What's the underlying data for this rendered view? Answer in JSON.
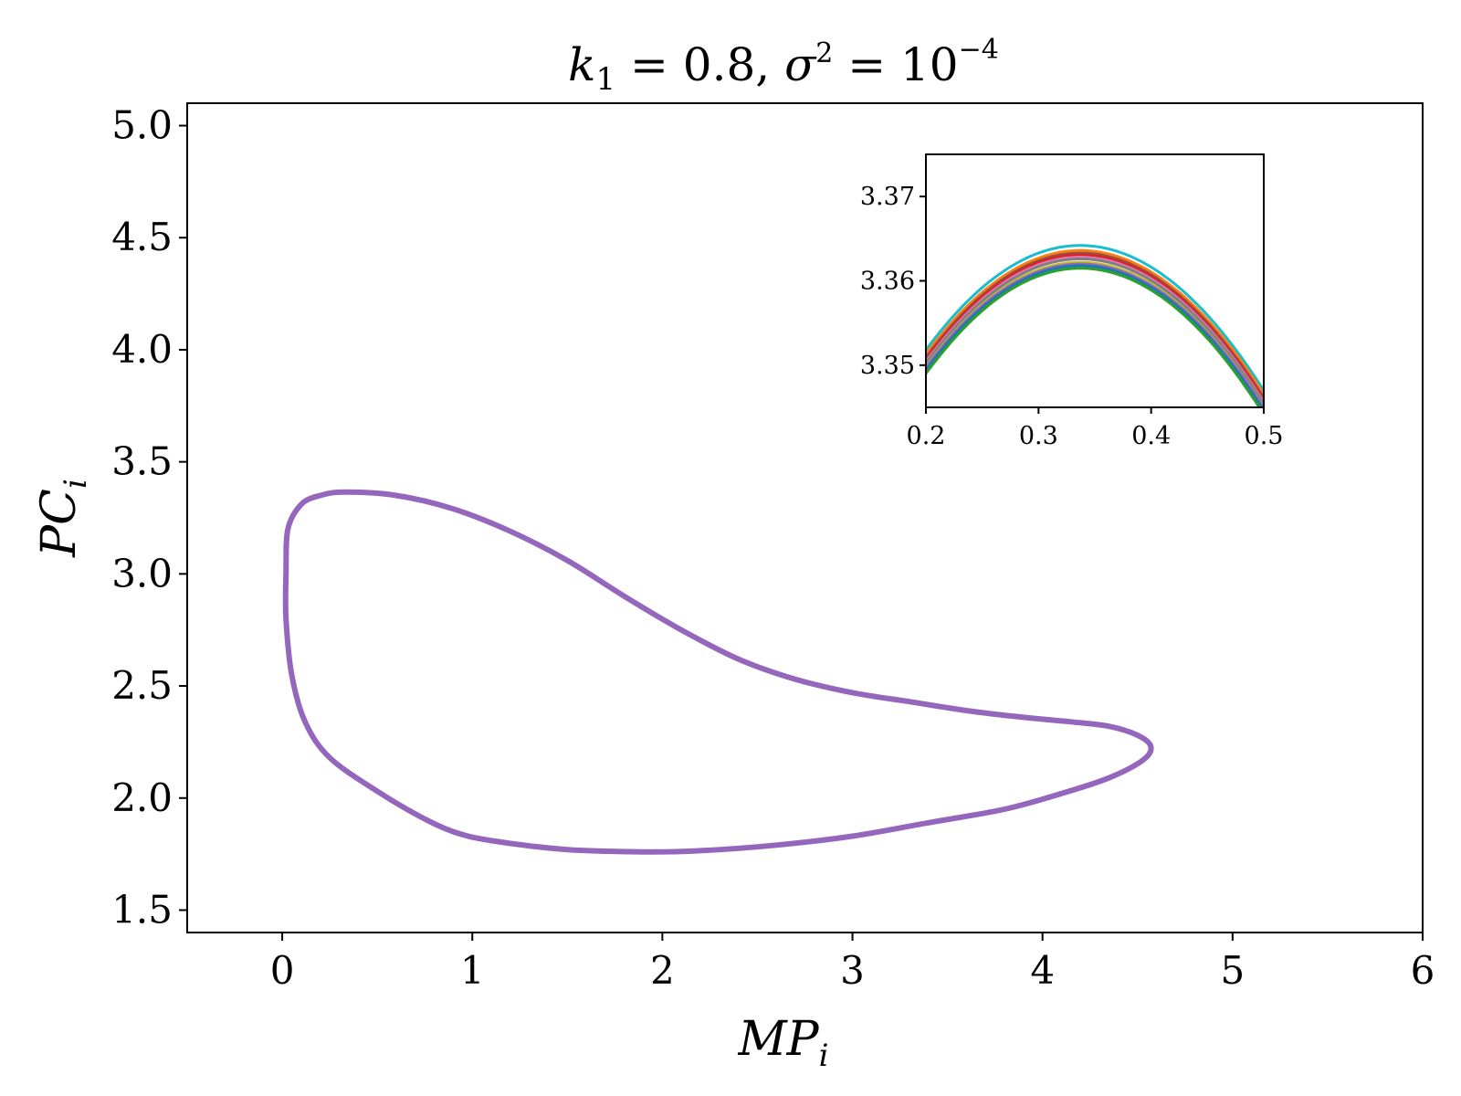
{
  "chart_data": [
    {
      "type": "line",
      "title": {
        "k": "k",
        "k_sub": "1",
        "k_eq": " = 0.8, ",
        "sigma": "σ",
        "sigma_sup": "2",
        "sigma_eq": " = 10",
        "exponent": "−4"
      },
      "xlabel": {
        "main": "MP",
        "sub": "i"
      },
      "ylabel": {
        "main": "PC",
        "sub": "i"
      },
      "xlim": [
        -0.5,
        6
      ],
      "ylim": [
        1.4,
        5.1
      ],
      "xticks": [
        0,
        1,
        2,
        3,
        4,
        5,
        6
      ],
      "xtick_labels": [
        "0",
        "1",
        "2",
        "3",
        "4",
        "5",
        "6"
      ],
      "yticks": [
        1.5,
        2.0,
        2.5,
        3.0,
        3.5,
        4.0,
        4.5,
        5.0
      ],
      "ytick_labels": [
        "1.5",
        "2.0",
        "2.5",
        "3.0",
        "3.5",
        "4.0",
        "4.5",
        "5.0"
      ],
      "grid": false,
      "series": [
        {
          "color": "#9467bd",
          "closed": true,
          "points": [
            [
              0.33,
              3.365
            ],
            [
              0.6,
              3.35
            ],
            [
              0.9,
              3.29
            ],
            [
              1.2,
              3.19
            ],
            [
              1.5,
              3.06
            ],
            [
              1.8,
              2.9
            ],
            [
              2.1,
              2.75
            ],
            [
              2.4,
              2.62
            ],
            [
              2.7,
              2.53
            ],
            [
              3.0,
              2.47
            ],
            [
              3.3,
              2.43
            ],
            [
              3.6,
              2.39
            ],
            [
              3.9,
              2.36
            ],
            [
              4.15,
              2.34
            ],
            [
              4.35,
              2.32
            ],
            [
              4.5,
              2.28
            ],
            [
              4.57,
              2.23
            ],
            [
              4.53,
              2.17
            ],
            [
              4.35,
              2.09
            ],
            [
              4.1,
              2.02
            ],
            [
              3.8,
              1.95
            ],
            [
              3.4,
              1.89
            ],
            [
              3.0,
              1.83
            ],
            [
              2.6,
              1.79
            ],
            [
              2.2,
              1.765
            ],
            [
              1.9,
              1.76
            ],
            [
              1.5,
              1.77
            ],
            [
              1.1,
              1.81
            ],
            [
              0.9,
              1.85
            ],
            [
              0.72,
              1.92
            ],
            [
              0.5,
              2.03
            ],
            [
              0.25,
              2.18
            ],
            [
              0.12,
              2.34
            ],
            [
              0.05,
              2.55
            ],
            [
              0.02,
              2.8
            ],
            [
              0.02,
              3.0
            ],
            [
              0.03,
              3.2
            ],
            [
              0.1,
              3.31
            ],
            [
              0.2,
              3.35
            ]
          ]
        }
      ]
    },
    {
      "type": "line",
      "role": "inset",
      "xlim": [
        0.2,
        0.5
      ],
      "ylim": [
        3.345,
        3.375
      ],
      "xticks": [
        0.2,
        0.3,
        0.4,
        0.5
      ],
      "xtick_labels": [
        "0.2",
        "0.3",
        "0.4",
        "0.5"
      ],
      "yticks": [
        3.35,
        3.36,
        3.37
      ],
      "ytick_labels": [
        "3.35",
        "3.36",
        "3.37"
      ],
      "grid": false,
      "series": [
        {
          "color": "#17becf",
          "x_peak": 0.337,
          "y_peak": 3.3642,
          "y_edge": 3.3518
        },
        {
          "color": "#ff7f0e",
          "x_peak": 0.337,
          "y_peak": 3.3636,
          "y_edge": 3.3513
        },
        {
          "color": "#8c564b",
          "x_peak": 0.337,
          "y_peak": 3.3633,
          "y_edge": 3.3509
        },
        {
          "color": "#d62728",
          "x_peak": 0.337,
          "y_peak": 3.3631,
          "y_edge": 3.3507
        },
        {
          "color": "#e377c2",
          "x_peak": 0.337,
          "y_peak": 3.3628,
          "y_edge": 3.3504
        },
        {
          "color": "#7f7f7f",
          "x_peak": 0.337,
          "y_peak": 3.3626,
          "y_edge": 3.3502
        },
        {
          "color": "#bcbd22",
          "x_peak": 0.337,
          "y_peak": 3.3622,
          "y_edge": 3.3498
        },
        {
          "color": "#9467bd",
          "x_peak": 0.337,
          "y_peak": 3.362,
          "y_edge": 3.3497
        },
        {
          "color": "#1f77b4",
          "x_peak": 0.337,
          "y_peak": 3.3618,
          "y_edge": 3.3494
        },
        {
          "color": "#2ca02c",
          "x_peak": 0.337,
          "y_peak": 3.3615,
          "y_edge": 3.349
        }
      ]
    }
  ]
}
